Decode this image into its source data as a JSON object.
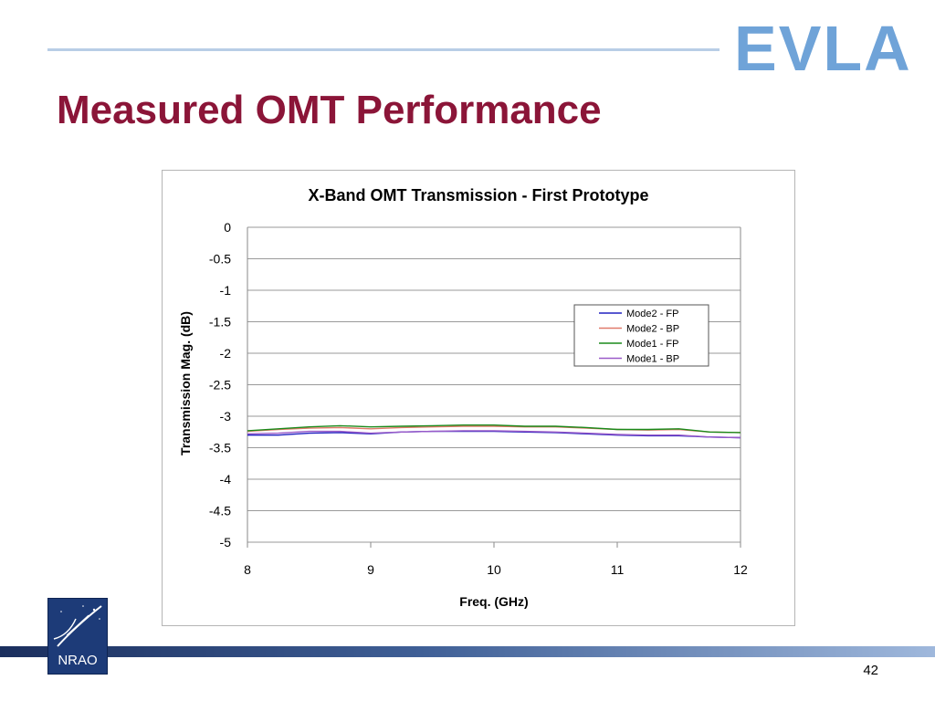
{
  "slide": {
    "title": "Measured OMT Performance",
    "logo_text": "EVLA",
    "footer_logo_text": "NRAO",
    "page_number": "42"
  },
  "colors": {
    "title": "#8b1538",
    "logo": "#6fa3d8",
    "top_rule": "#b8cde6",
    "footer_band": "#1b2f5e"
  },
  "chart_data": {
    "type": "line",
    "title": "X-Band OMT Transmission - First Prototype",
    "xlabel": "Freq. (GHz)",
    "ylabel": "Transmission Mag. (dB)",
    "xlim": [
      8,
      12
    ],
    "ylim": [
      -5,
      0
    ],
    "xticks": [
      "8",
      "9",
      "10",
      "11",
      "12"
    ],
    "yticks": [
      "0",
      "-0.5",
      "-1",
      "-1.5",
      "-2",
      "-2.5",
      "-3",
      "-3.5",
      "-4",
      "-4.5",
      "-5"
    ],
    "grid": "horizontal",
    "legend_position": "right",
    "x": [
      8.0,
      8.25,
      8.5,
      8.75,
      9.0,
      9.25,
      9.5,
      9.75,
      10.0,
      10.25,
      10.5,
      10.75,
      11.0,
      11.25,
      11.5,
      11.75,
      12.0
    ],
    "series": [
      {
        "name": "Mode2 - FP",
        "color": "#2020c0",
        "values": [
          -3.3,
          -3.3,
          -3.27,
          -3.26,
          -3.28,
          -3.25,
          -3.24,
          -3.24,
          -3.24,
          -3.25,
          -3.26,
          -3.28,
          -3.3,
          -3.31,
          -3.31,
          -3.33,
          -3.34
        ]
      },
      {
        "name": "Mode2 - BP",
        "color": "#e07a6a",
        "values": [
          -3.24,
          -3.21,
          -3.19,
          -3.18,
          -3.2,
          -3.18,
          -3.17,
          -3.16,
          -3.16,
          -3.17,
          -3.17,
          -3.19,
          -3.21,
          -3.22,
          -3.21,
          -3.25,
          -3.26
        ]
      },
      {
        "name": "Mode1 - FP",
        "color": "#1a8a1a",
        "values": [
          -3.23,
          -3.2,
          -3.17,
          -3.15,
          -3.17,
          -3.16,
          -3.15,
          -3.14,
          -3.14,
          -3.16,
          -3.16,
          -3.18,
          -3.21,
          -3.21,
          -3.2,
          -3.25,
          -3.26
        ]
      },
      {
        "name": "Mode1 - BP",
        "color": "#9a5ac8",
        "values": [
          -3.28,
          -3.27,
          -3.24,
          -3.24,
          -3.27,
          -3.25,
          -3.24,
          -3.23,
          -3.23,
          -3.24,
          -3.25,
          -3.27,
          -3.29,
          -3.3,
          -3.3,
          -3.33,
          -3.34
        ]
      }
    ]
  }
}
